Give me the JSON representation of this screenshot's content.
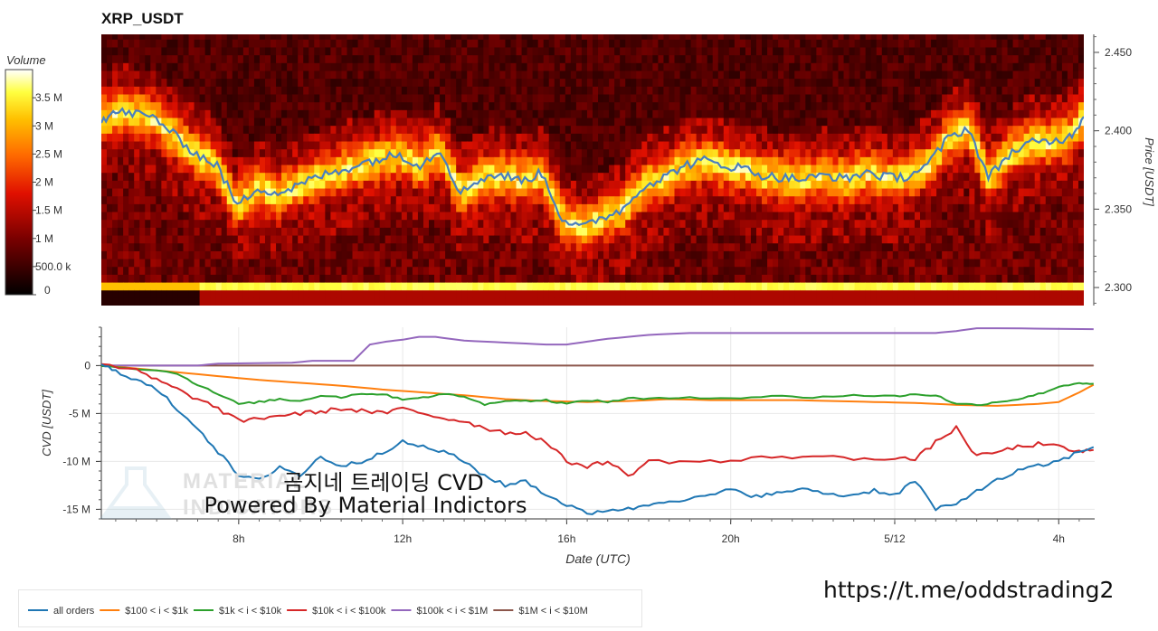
{
  "title": "XRP_USDT",
  "watermark": {
    "line1": "곰지네 트레이딩 CVD",
    "line2": "Powered By Material Indictors",
    "logo_text_1": "MATERIAL",
    "logo_text_2": "INDICATORS"
  },
  "url": "https://t.me/oddstrading2",
  "colors": {
    "all_orders": "#1f77b4",
    "s100_1k": "#ff7f0e",
    "s1k_10k": "#2ca02c",
    "s10k_100k": "#d62728",
    "s100k_1m": "#9467bd",
    "s1m_10m": "#8c564b",
    "price_line": "#4a7fbf"
  },
  "chart_data": [
    {
      "type": "heatmap",
      "title": "XRP_USDT",
      "ylabel": "Price [USDT]",
      "ylim": [
        2.2885,
        2.4615
      ],
      "xlim": [
        4.65,
        28.85
      ],
      "yticks": [
        2.3,
        2.35,
        2.4,
        2.45
      ],
      "ytick_labels": [
        "2.300",
        "2.350",
        "2.400",
        "2.450"
      ],
      "colorbar": {
        "title": "Volume",
        "range": [
          0,
          4000000
        ],
        "ticks": [
          0,
          500000,
          1000000,
          1500000,
          2000000,
          2500000,
          3000000,
          3500000
        ],
        "tick_labels": [
          "0",
          "500.0 k",
          "1 M",
          "1.5 M",
          "2 M",
          "2.5 M",
          "3 M",
          "3.5 M"
        ]
      },
      "price_series": {
        "x": [
          4.65,
          5.0,
          5.5,
          6.0,
          6.5,
          7.0,
          7.5,
          8.0,
          8.5,
          9.0,
          9.5,
          10.0,
          10.5,
          11.0,
          11.5,
          12.0,
          12.5,
          13.0,
          13.5,
          14.0,
          14.5,
          15.0,
          15.5,
          16.0,
          16.5,
          17.0,
          17.5,
          18.0,
          18.5,
          19.0,
          19.5,
          20.0,
          20.5,
          21.0,
          21.5,
          22.0,
          22.5,
          23.0,
          23.5,
          24.0,
          24.5,
          25.0,
          25.5,
          26.0,
          26.5,
          27.0,
          27.5,
          28.0,
          28.5,
          28.85
        ],
        "y": [
          2.407,
          2.412,
          2.411,
          2.408,
          2.396,
          2.385,
          2.378,
          2.352,
          2.364,
          2.36,
          2.365,
          2.371,
          2.374,
          2.379,
          2.382,
          2.385,
          2.378,
          2.388,
          2.36,
          2.37,
          2.372,
          2.368,
          2.373,
          2.344,
          2.338,
          2.345,
          2.35,
          2.365,
          2.37,
          2.378,
          2.381,
          2.378,
          2.376,
          2.371,
          2.37,
          2.369,
          2.372,
          2.369,
          2.374,
          2.37,
          2.371,
          2.378,
          2.395,
          2.402,
          2.37,
          2.385,
          2.392,
          2.393,
          2.396,
          2.409
        ]
      }
    },
    {
      "type": "line",
      "xlabel": "Date (UTC)",
      "ylabel": "CVD [USDT]",
      "xlim": [
        4.65,
        28.85
      ],
      "ylim": [
        -16000000,
        4000000
      ],
      "xticks": [
        8,
        12,
        16,
        20,
        24,
        28
      ],
      "xtick_labels": [
        "8h",
        "12h",
        "16h",
        "20h",
        "5/12",
        "4h"
      ],
      "yticks": [
        0,
        -5000000,
        -10000000,
        -15000000
      ],
      "ytick_labels": [
        "0",
        "-5 M",
        "-10 M",
        "-15 M"
      ],
      "legend_position": "bottom-left",
      "series": [
        {
          "name": "all orders",
          "color_key": "all_orders",
          "x": [
            4.65,
            5.0,
            5.5,
            6.0,
            6.5,
            7.0,
            7.5,
            8.0,
            8.5,
            9.0,
            9.5,
            10.0,
            10.5,
            11.0,
            11.5,
            12.0,
            12.5,
            13.0,
            13.5,
            14.0,
            14.5,
            15.0,
            15.5,
            16.0,
            16.5,
            17.0,
            17.5,
            18.0,
            18.5,
            19.0,
            19.5,
            20.0,
            20.5,
            21.0,
            21.5,
            22.0,
            22.5,
            23.0,
            23.5,
            24.0,
            24.5,
            25.0,
            25.5,
            26.0,
            26.5,
            27.0,
            27.5,
            28.0,
            28.5,
            28.85
          ],
          "y": [
            0,
            -500000,
            -1500000,
            -2500000,
            -4500000,
            -6500000,
            -9000000,
            -11500000,
            -12000000,
            -10500000,
            -11500000,
            -9500000,
            -10500000,
            -10000000,
            -9000000,
            -8000000,
            -8500000,
            -9000000,
            -10000000,
            -11500000,
            -12500000,
            -12000000,
            -13500000,
            -14500000,
            -15500000,
            -15000000,
            -15000000,
            -14500000,
            -14000000,
            -14000000,
            -13500000,
            -13000000,
            -13500000,
            -13500000,
            -13000000,
            -13000000,
            -13500000,
            -13500000,
            -13000000,
            -13500000,
            -12000000,
            -15000000,
            -14500000,
            -13000000,
            -12000000,
            -11000000,
            -10500000,
            -10000000,
            -9000000,
            -8500000
          ]
        },
        {
          "name": "$100 < i < $1k",
          "color_key": "s100_1k",
          "x": [
            4.65,
            5.5,
            6.5,
            7.5,
            8.5,
            9.5,
            10.5,
            11.5,
            12.5,
            13.5,
            14.5,
            15.5,
            16.5,
            17.5,
            18.5,
            19.5,
            20.5,
            21.5,
            22.5,
            23.5,
            24.5,
            25.5,
            26.5,
            27.5,
            28.0,
            28.5,
            28.85
          ],
          "y": [
            0,
            -300000,
            -700000,
            -1100000,
            -1500000,
            -1800000,
            -2100000,
            -2500000,
            -2800000,
            -3100000,
            -3500000,
            -3700000,
            -3800000,
            -3700000,
            -3500000,
            -3600000,
            -3600000,
            -3600000,
            -3700000,
            -3800000,
            -3900000,
            -4100000,
            -4200000,
            -4000000,
            -3800000,
            -2800000,
            -2000000
          ]
        },
        {
          "name": "$1k < i < $10k",
          "color_key": "s1k_10k",
          "x": [
            4.65,
            5.5,
            6.5,
            7.0,
            7.5,
            8.0,
            8.5,
            9.0,
            9.5,
            10.0,
            10.5,
            11.0,
            11.5,
            12.0,
            12.5,
            13.0,
            13.5,
            14.0,
            14.5,
            15.0,
            15.5,
            16.0,
            16.5,
            17.0,
            17.5,
            18.0,
            19.0,
            20.0,
            21.0,
            22.0,
            23.0,
            24.0,
            24.5,
            25.0,
            25.5,
            26.0,
            26.5,
            27.0,
            27.5,
            28.0,
            28.5,
            28.85
          ],
          "y": [
            0,
            -300000,
            -800000,
            -2000000,
            -3000000,
            -4000000,
            -3800000,
            -3500000,
            -3700000,
            -3100000,
            -3300000,
            -2900000,
            -3000000,
            -3500000,
            -3300000,
            -3000000,
            -3200000,
            -4100000,
            -3600000,
            -3700000,
            -3600000,
            -4000000,
            -3600000,
            -3800000,
            -3400000,
            -3500000,
            -3300000,
            -3400000,
            -3200000,
            -3300000,
            -3100000,
            -3200000,
            -3000000,
            -3100000,
            -4000000,
            -4100000,
            -3800000,
            -3500000,
            -3000000,
            -2200000,
            -1800000,
            -1900000
          ]
        },
        {
          "name": "$10k < i < $100k",
          "color_key": "s10k_100k",
          "x": [
            4.65,
            5.5,
            6.0,
            6.5,
            7.0,
            7.5,
            8.0,
            8.5,
            9.0,
            9.5,
            10.0,
            10.5,
            11.0,
            11.5,
            12.0,
            12.5,
            13.0,
            13.5,
            14.0,
            14.5,
            15.0,
            15.5,
            16.0,
            16.5,
            17.0,
            17.5,
            18.0,
            19.0,
            20.0,
            21.0,
            22.0,
            23.0,
            24.0,
            24.5,
            25.0,
            25.5,
            26.0,
            26.5,
            27.0,
            27.5,
            28.0,
            28.5,
            28.85
          ],
          "y": [
            0,
            -500000,
            -1500000,
            -2500000,
            -3500000,
            -4500000,
            -5800000,
            -5500000,
            -5200000,
            -5000000,
            -4800000,
            -4500000,
            -4700000,
            -5000000,
            -4500000,
            -5000000,
            -5500000,
            -5800000,
            -6500000,
            -7000000,
            -7000000,
            -8000000,
            -10000000,
            -10500000,
            -10000000,
            -11500000,
            -10000000,
            -10000000,
            -10000000,
            -9500000,
            -9500000,
            -9700000,
            -9600000,
            -9800000,
            -8000000,
            -6500000,
            -9500000,
            -9000000,
            -8500000,
            -8200000,
            -8500000,
            -9000000,
            -8800000
          ]
        },
        {
          "name": "$100k < i < $1M",
          "color_key": "s100k_1m",
          "x": [
            4.65,
            7.0,
            7.5,
            9.3,
            9.8,
            10.3,
            10.8,
            11.2,
            11.6,
            12.0,
            12.4,
            12.8,
            13.5,
            14.5,
            15.5,
            16.0,
            16.5,
            17.0,
            18.0,
            19.0,
            20.0,
            21.0,
            22.0,
            23.0,
            24.0,
            25.0,
            25.5,
            26.0,
            26.5,
            28.85
          ],
          "y": [
            0,
            0,
            200000,
            300000,
            500000,
            500000,
            500000,
            2200000,
            2500000,
            2700000,
            3000000,
            3000000,
            2600000,
            2400000,
            2200000,
            2200000,
            2500000,
            2800000,
            3200000,
            3400000,
            3400000,
            3400000,
            3400000,
            3400000,
            3400000,
            3400000,
            3600000,
            3900000,
            3900000,
            3800000
          ]
        },
        {
          "name": "$1M < i < $10M",
          "color_key": "s1m_10m",
          "x": [
            4.65,
            28.85
          ],
          "y": [
            0,
            0
          ]
        }
      ]
    }
  ]
}
